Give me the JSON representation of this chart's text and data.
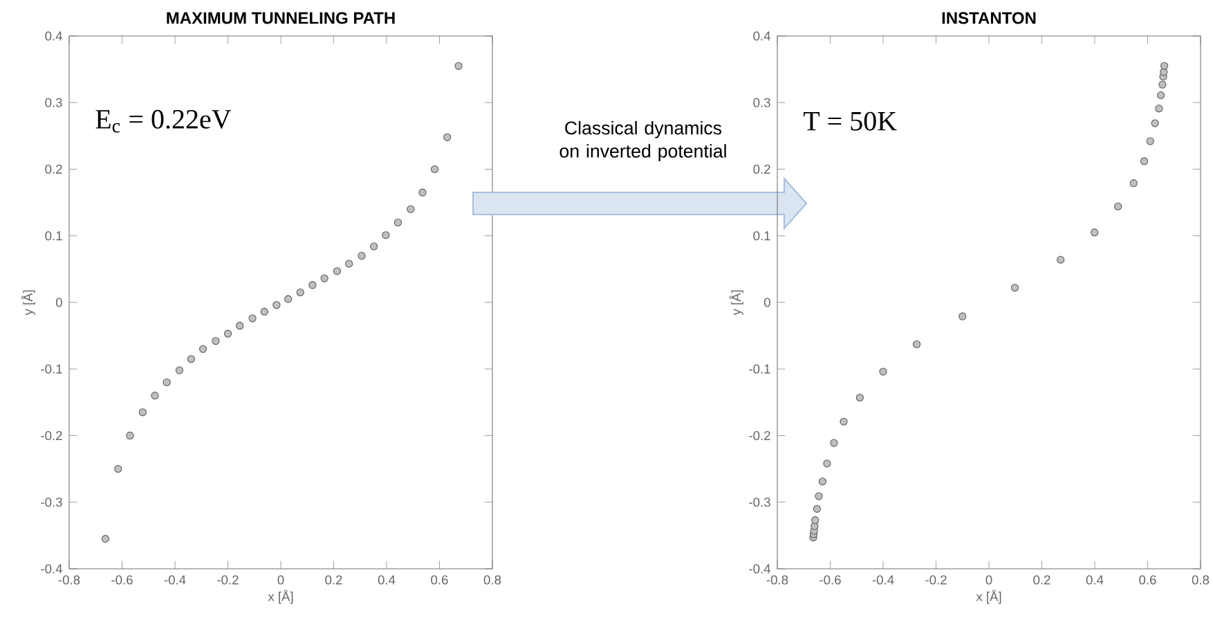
{
  "chart_data": [
    {
      "type": "scatter",
      "title": "MAXIMUM TUNNELING PATH",
      "xlabel": "x  [Å]",
      "ylabel": "y  [Å]",
      "xlim": [
        -0.8,
        0.8
      ],
      "ylim": [
        -0.4,
        0.4
      ],
      "xticks": [
        -0.8,
        -0.6,
        -0.4,
        -0.2,
        0,
        0.2,
        0.4,
        0.6,
        0.8
      ],
      "yticks": [
        -0.4,
        -0.3,
        -0.2,
        -0.1,
        0,
        0.1,
        0.2,
        0.3,
        0.4
      ],
      "color": "#c0c0c0",
      "marker": "circle",
      "x": [
        -0.663,
        -0.615,
        -0.57,
        -0.522,
        -0.476,
        -0.431,
        -0.383,
        -0.339,
        -0.294,
        -0.246,
        -0.2,
        -0.155,
        -0.107,
        -0.062,
        -0.016,
        0.028,
        0.074,
        0.12,
        0.165,
        0.213,
        0.258,
        0.306,
        0.352,
        0.397,
        0.443,
        0.491,
        0.536,
        0.582,
        0.629,
        0.672
      ],
      "values": [
        -0.355,
        -0.25,
        -0.2,
        -0.165,
        -0.14,
        -0.12,
        -0.102,
        -0.085,
        -0.07,
        -0.058,
        -0.047,
        -0.035,
        -0.024,
        -0.014,
        -0.004,
        0.005,
        0.015,
        0.026,
        0.036,
        0.047,
        0.058,
        0.07,
        0.084,
        0.101,
        0.12,
        0.14,
        0.165,
        0.2,
        0.248,
        0.355
      ],
      "annotations": [
        "E$_{c}$ = 0.22eV",
        "Classical dynamics on inverted potential"
      ]
    },
    {
      "type": "scatter",
      "title": "INSTANTON",
      "xlabel": "x  [Å]",
      "ylabel": "y  [Å]",
      "xlim": [
        -0.8,
        0.8
      ],
      "ylim": [
        -0.4,
        0.4
      ],
      "xticks": [
        -0.8,
        -0.6,
        -0.4,
        -0.2,
        0,
        0.2,
        0.4,
        0.6,
        0.8
      ],
      "yticks": [
        -0.4,
        -0.3,
        -0.2,
        -0.1,
        0,
        0.1,
        0.2,
        0.3,
        0.4
      ],
      "color": "#c0c0c0",
      "marker": "circle",
      "x": [
        -0.664,
        -0.663,
        -0.661,
        -0.659,
        -0.657,
        -0.65,
        -0.643,
        -0.629,
        -0.612,
        -0.586,
        -0.549,
        -0.488,
        -0.4,
        -0.273,
        -0.1,
        0.098,
        0.271,
        0.399,
        0.488,
        0.547,
        0.587,
        0.61,
        0.628,
        0.643,
        0.65,
        0.656,
        0.659,
        0.661,
        0.663
      ],
      "values": [
        -0.353,
        -0.348,
        -0.343,
        -0.336,
        -0.327,
        -0.31,
        -0.291,
        -0.269,
        -0.242,
        -0.211,
        -0.179,
        -0.143,
        -0.104,
        -0.063,
        -0.021,
        0.022,
        0.064,
        0.105,
        0.144,
        0.179,
        0.212,
        0.242,
        0.269,
        0.291,
        0.311,
        0.327,
        0.339,
        0.346,
        0.355
      ],
      "annotations": [
        "T = 50K"
      ]
    }
  ]
}
